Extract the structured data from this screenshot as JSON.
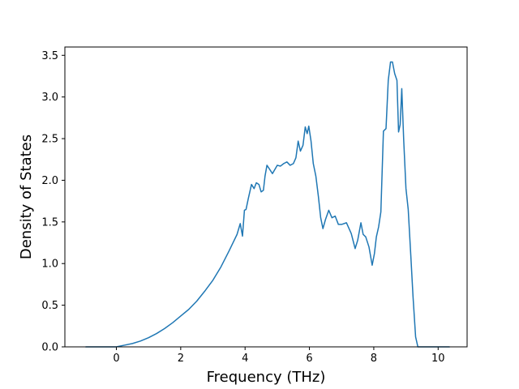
{
  "chart_data": {
    "type": "line",
    "title": "",
    "xlabel": "Frequency (THz)",
    "ylabel": "Density of States",
    "xlim": [
      -1.6,
      10.9
    ],
    "ylim": [
      0,
      3.6
    ],
    "x_ticks": [
      0,
      2,
      4,
      6,
      8,
      10
    ],
    "y_ticks": [
      0.0,
      0.5,
      1.0,
      1.5,
      2.0,
      2.5,
      3.0,
      3.5
    ],
    "x_tick_labels": [
      "0",
      "2",
      "4",
      "6",
      "8",
      "10"
    ],
    "y_tick_labels": [
      "0.0",
      "0.5",
      "1.0",
      "1.5",
      "2.0",
      "2.5",
      "3.0",
      "3.5"
    ],
    "grid": false,
    "legend": "none",
    "series": [
      {
        "color": "#1f77b4",
        "x": [
          -0.95,
          -0.5,
          0.0,
          0.25,
          0.5,
          0.75,
          1.0,
          1.25,
          1.5,
          1.75,
          2.0,
          2.25,
          2.5,
          2.75,
          3.0,
          3.25,
          3.5,
          3.75,
          3.85,
          3.92,
          3.98,
          4.03,
          4.1,
          4.2,
          4.28,
          4.35,
          4.43,
          4.5,
          4.57,
          4.62,
          4.68,
          4.75,
          4.85,
          5.0,
          5.1,
          5.2,
          5.3,
          5.4,
          5.5,
          5.58,
          5.65,
          5.72,
          5.8,
          5.87,
          5.93,
          5.98,
          6.05,
          6.12,
          6.2,
          6.28,
          6.35,
          6.42,
          6.5,
          6.6,
          6.7,
          6.8,
          6.9,
          7.0,
          7.15,
          7.3,
          7.42,
          7.5,
          7.6,
          7.67,
          7.75,
          7.85,
          7.95,
          8.02,
          8.08,
          8.15,
          8.22,
          8.3,
          8.38,
          8.45,
          8.52,
          8.58,
          8.65,
          8.72,
          8.77,
          8.82,
          8.87,
          8.93,
          9.0,
          9.07,
          9.15,
          9.22,
          9.3,
          9.37,
          9.43,
          9.48,
          9.6,
          9.8,
          10.0,
          10.2,
          10.35
        ],
        "y": [
          0.0,
          0.0,
          0.0,
          0.02,
          0.04,
          0.07,
          0.11,
          0.16,
          0.22,
          0.29,
          0.37,
          0.45,
          0.55,
          0.67,
          0.8,
          0.96,
          1.15,
          1.35,
          1.48,
          1.33,
          1.64,
          1.65,
          1.78,
          1.95,
          1.9,
          1.97,
          1.95,
          1.86,
          1.88,
          2.05,
          2.18,
          2.14,
          2.08,
          2.18,
          2.17,
          2.2,
          2.22,
          2.18,
          2.2,
          2.27,
          2.47,
          2.35,
          2.42,
          2.64,
          2.56,
          2.65,
          2.47,
          2.2,
          2.05,
          1.8,
          1.55,
          1.42,
          1.53,
          1.64,
          1.55,
          1.57,
          1.47,
          1.47,
          1.49,
          1.36,
          1.18,
          1.28,
          1.49,
          1.35,
          1.32,
          1.2,
          0.98,
          1.12,
          1.32,
          1.44,
          1.62,
          2.59,
          2.62,
          3.2,
          3.42,
          3.42,
          3.28,
          3.2,
          2.58,
          2.67,
          3.1,
          2.48,
          1.9,
          1.65,
          1.1,
          0.6,
          0.12,
          0.0,
          0.0,
          0.0,
          0.0,
          0.0,
          0.0,
          0.0,
          0.0
        ]
      }
    ]
  }
}
